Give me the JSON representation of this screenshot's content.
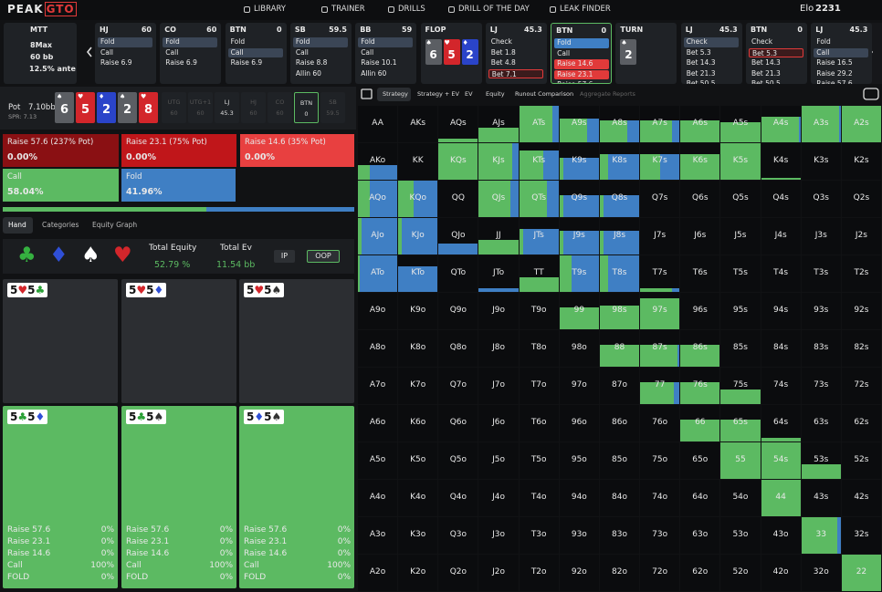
{
  "nav": {
    "logo_a": "PEAK",
    "logo_b": "GTO",
    "links": [
      "LIBRARY",
      "TRAINER",
      "DRILLS",
      "DRILL OF THE DAY",
      "LEAK FINDER"
    ],
    "elo_label": "Elo",
    "elo": "2231"
  },
  "game": {
    "format": "MTT",
    "players": "8Max",
    "stack": "60 bb",
    "ante": "12.5% ante"
  },
  "timeline": [
    {
      "pos": "HJ",
      "stack": "60",
      "actions": [
        {
          "label": "Fold",
          "style": "sel"
        },
        {
          "label": "Call"
        },
        {
          "label": "Raise 6.9"
        }
      ]
    },
    {
      "pos": "CO",
      "stack": "60",
      "actions": [
        {
          "label": "Fold",
          "style": "sel"
        },
        {
          "label": "Call"
        },
        {
          "label": "Raise 6.9"
        }
      ]
    },
    {
      "pos": "BTN",
      "stack": "0",
      "actions": [
        {
          "label": "Fold"
        },
        {
          "label": "Call",
          "style": "sel"
        },
        {
          "label": "Raise 6.9"
        }
      ]
    },
    {
      "pos": "SB",
      "stack": "59.5",
      "actions": [
        {
          "label": "Fold",
          "style": "sel"
        },
        {
          "label": "Call"
        },
        {
          "label": "Raise 8.8"
        },
        {
          "label": "Allin 60"
        }
      ]
    },
    {
      "pos": "BB",
      "stack": "59",
      "actions": [
        {
          "label": "Fold",
          "style": "sel"
        },
        {
          "label": "Call"
        },
        {
          "label": "Raise 10.1"
        },
        {
          "label": "Allin 60"
        }
      ]
    },
    {
      "street": "FLOP",
      "cards": [
        {
          "rank": "6",
          "suit": "♠",
          "color": "#5b5e63"
        },
        {
          "rank": "5",
          "suit": "♥",
          "color": "#d3262b"
        },
        {
          "rank": "2",
          "suit": "♦",
          "color": "#2a44c9"
        }
      ]
    },
    {
      "pos": "LJ",
      "stack": "45.3",
      "actions": [
        {
          "label": "Check"
        },
        {
          "label": "Bet 1.8"
        },
        {
          "label": "Bet 4.8"
        },
        {
          "label": "Bet 7.1",
          "style": "redline"
        }
      ]
    },
    {
      "pos": "BTN",
      "stack": "0",
      "active": true,
      "actions": [
        {
          "label": "Fold",
          "style": "blue"
        },
        {
          "label": "Call"
        },
        {
          "label": "Raise 14.6",
          "style": "red"
        },
        {
          "label": "Raise 23.1",
          "style": "red"
        },
        {
          "label": "Raise 57.6"
        }
      ]
    },
    {
      "street": "TURN",
      "cards": [
        {
          "rank": "2",
          "suit": "♠",
          "color": "#5b5e63"
        }
      ]
    },
    {
      "pos": "LJ",
      "stack": "45.3",
      "actions": [
        {
          "label": "Check",
          "style": "sel"
        },
        {
          "label": "Bet 5.3"
        },
        {
          "label": "Bet 14.3"
        },
        {
          "label": "Bet 21.3"
        },
        {
          "label": "Bet 50.5"
        }
      ]
    },
    {
      "pos": "BTN",
      "stack": "0",
      "actions": [
        {
          "label": "Check"
        },
        {
          "label": "Bet 5.3",
          "style": "redline"
        },
        {
          "label": "Bet 14.3"
        },
        {
          "label": "Bet 21.3"
        },
        {
          "label": "Bet 50.5"
        }
      ]
    },
    {
      "pos": "LJ",
      "stack": "45.3",
      "actions": [
        {
          "label": "Fold"
        },
        {
          "label": "Call",
          "style": "sel"
        },
        {
          "label": "Raise 16.5"
        },
        {
          "label": "Raise 29.2"
        },
        {
          "label": "Raise 57.6"
        }
      ]
    }
  ],
  "pot": {
    "label": "Pot",
    "value": "7.10bb",
    "spr": "SPR: 7.13"
  },
  "board": [
    {
      "rank": "6",
      "suit": "♠",
      "color": "#5b5e63"
    },
    {
      "rank": "5",
      "suit": "♥",
      "color": "#d3262b"
    },
    {
      "rank": "2",
      "suit": "♦",
      "color": "#2a44c9"
    },
    {
      "rank": "2",
      "suit": "♠",
      "color": "#5b5e63"
    },
    {
      "rank": "8",
      "suit": "♥",
      "color": "#d3262b"
    }
  ],
  "seats": [
    {
      "pos": "UTG",
      "stack": "60"
    },
    {
      "pos": "UTG+1",
      "stack": "60"
    },
    {
      "pos": "LJ",
      "stack": "45.3",
      "live": true
    },
    {
      "pos": "HJ",
      "stack": "60"
    },
    {
      "pos": "CO",
      "stack": "60"
    },
    {
      "pos": "BTN",
      "stack": "0",
      "live": true,
      "active": true
    },
    {
      "pos": "SB",
      "stack": "59.5"
    }
  ],
  "strategy": {
    "labels": [
      "Raise 57.6 (237% Pot)",
      "Raise 23.1 (75% Pot)",
      "Raise 14.6 (35% Pot)",
      "Call",
      "Fold"
    ],
    "values": [
      0,
      0,
      0,
      58.04,
      41.96
    ],
    "value_labels": [
      "0.00%",
      "0.00%",
      "0.00%",
      "58.04%",
      "41.96%"
    ],
    "colors": [
      "#8a1013",
      "#c0161a",
      "#e84040",
      "#5cba62",
      "#3f7fc4"
    ]
  },
  "tabs": [
    "Hand",
    "Categories",
    "Equity Graph"
  ],
  "suits": [
    {
      "symbol": "♣",
      "color": "#35b140"
    },
    {
      "symbol": "♦",
      "color": "#2f4fd6"
    },
    {
      "symbol": "♠",
      "color": "#ffffff"
    },
    {
      "symbol": "♥",
      "color": "#d3262b"
    }
  ],
  "equity": {
    "label": "Total Equity",
    "value": "52.79 %"
  },
  "ev": {
    "label": "Total Ev",
    "value": "11.54 bb"
  },
  "buttons": [
    "IP",
    "OOP"
  ],
  "combos": [
    {
      "cards": [
        {
          "rank": "5",
          "suit": "♥",
          "color": "#d3262b"
        },
        {
          "rank": "5",
          "suit": "♣",
          "color": "#2aa036"
        }
      ],
      "color": "#2c2e32"
    },
    {
      "cards": [
        {
          "rank": "5",
          "suit": "♥",
          "color": "#d3262b"
        },
        {
          "rank": "5",
          "suit": "♦",
          "color": "#2f4fd6"
        }
      ],
      "color": "#2c2e32"
    },
    {
      "cards": [
        {
          "rank": "5",
          "suit": "♥",
          "color": "#d3262b"
        },
        {
          "rank": "5",
          "suit": "♠",
          "color": "#333333"
        }
      ],
      "color": "#2c2e32"
    },
    {
      "cards": [
        {
          "rank": "5",
          "suit": "♣",
          "color": "#2aa036"
        },
        {
          "rank": "5",
          "suit": "♦",
          "color": "#2f4fd6"
        }
      ],
      "color": "#5cba62",
      "stats": [
        {
          "label": "Raise 57.6",
          "value": "0%"
        },
        {
          "label": "Raise 23.1",
          "value": "0%"
        },
        {
          "label": "Raise 14.6",
          "value": "0%"
        },
        {
          "label": "Call",
          "value": "100%"
        },
        {
          "label": "FOLD",
          "value": "0%"
        }
      ]
    },
    {
      "cards": [
        {
          "rank": "5",
          "suit": "♣",
          "color": "#2aa036"
        },
        {
          "rank": "5",
          "suit": "♠",
          "color": "#333333"
        }
      ],
      "color": "#5cba62",
      "stats": [
        {
          "label": "Raise 57.6",
          "value": "0%"
        },
        {
          "label": "Raise 23.1",
          "value": "0%"
        },
        {
          "label": "Raise 14.6",
          "value": "0%"
        },
        {
          "label": "Call",
          "value": "100%"
        },
        {
          "label": "FOLD",
          "value": "0%"
        }
      ]
    },
    {
      "cards": [
        {
          "rank": "5",
          "suit": "♦",
          "color": "#2f4fd6"
        },
        {
          "rank": "5",
          "suit": "♠",
          "color": "#333333"
        }
      ],
      "color": "#5cba62",
      "stats": [
        {
          "label": "Raise 57.6",
          "value": "0%"
        },
        {
          "label": "Raise 23.1",
          "value": "0%"
        },
        {
          "label": "Raise 14.6",
          "value": "0%"
        },
        {
          "label": "Call",
          "value": "100%"
        },
        {
          "label": "FOLD",
          "value": "0%"
        }
      ]
    }
  ],
  "views": [
    "Strategy",
    "Strategy + EV",
    "EV",
    "Equity",
    "Runout Comparison",
    "Aggregate Reports"
  ],
  "grid": {
    "call_color": "#5cba62",
    "fold_color": "#3f7fc4",
    "labels": [
      [
        "AA",
        "AKs",
        "AQs",
        "AJs",
        "ATs",
        "A9s",
        "A8s",
        "A7s",
        "A6s",
        "A5s",
        "A4s",
        "A3s",
        "A2s"
      ],
      [
        "AKo",
        "KK",
        "KQs",
        "KJs",
        "KTs",
        "K9s",
        "K8s",
        "K7s",
        "K6s",
        "K5s",
        "K4s",
        "K3s",
        "K2s"
      ],
      [
        "AQo",
        "KQo",
        "QQ",
        "QJs",
        "QTs",
        "Q9s",
        "Q8s",
        "Q7s",
        "Q6s",
        "Q5s",
        "Q4s",
        "Q3s",
        "Q2s"
      ],
      [
        "AJo",
        "KJo",
        "QJo",
        "JJ",
        "JTs",
        "J9s",
        "J8s",
        "J7s",
        "J6s",
        "J5s",
        "J4s",
        "J3s",
        "J2s"
      ],
      [
        "ATo",
        "KTo",
        "QTo",
        "JTo",
        "TT",
        "T9s",
        "T8s",
        "T7s",
        "T6s",
        "T5s",
        "T4s",
        "T3s",
        "T2s"
      ],
      [
        "A9o",
        "K9o",
        "Q9o",
        "J9o",
        "T9o",
        "99",
        "98s",
        "97s",
        "96s",
        "95s",
        "94s",
        "93s",
        "92s"
      ],
      [
        "A8o",
        "K8o",
        "Q8o",
        "J8o",
        "T8o",
        "98o",
        "88",
        "87s",
        "86s",
        "85s",
        "84s",
        "83s",
        "82s"
      ],
      [
        "A7o",
        "K7o",
        "Q7o",
        "J7o",
        "T7o",
        "97o",
        "87o",
        "77",
        "76s",
        "75s",
        "74s",
        "73s",
        "72s"
      ],
      [
        "A6o",
        "K6o",
        "Q6o",
        "J6o",
        "T6o",
        "96o",
        "86o",
        "76o",
        "66",
        "65s",
        "64s",
        "63s",
        "62s"
      ],
      [
        "A5o",
        "K5o",
        "Q5o",
        "J5o",
        "T5o",
        "95o",
        "85o",
        "75o",
        "65o",
        "55",
        "54s",
        "53s",
        "52s"
      ],
      [
        "A4o",
        "K4o",
        "Q4o",
        "J4o",
        "T4o",
        "94o",
        "84o",
        "74o",
        "64o",
        "54o",
        "44",
        "43s",
        "42s"
      ],
      [
        "A3o",
        "K3o",
        "Q3o",
        "J3o",
        "T3o",
        "93o",
        "83o",
        "73o",
        "63o",
        "53o",
        "43o",
        "33",
        "32s"
      ],
      [
        "A2o",
        "K2o",
        "Q2o",
        "J2o",
        "T2o",
        "92o",
        "82o",
        "72o",
        "62o",
        "52o",
        "42o",
        "32o",
        "22"
      ]
    ],
    "range": [
      [
        0,
        0,
        0.1,
        0.4,
        1,
        0.65,
        0.6,
        0.6,
        0.6,
        0.55,
        0.7,
        1,
        1
      ],
      [
        0.4,
        0,
        1,
        1,
        0.8,
        0.6,
        0.7,
        0.7,
        0.7,
        1,
        0.05,
        0,
        0
      ],
      [
        1,
        1,
        0,
        1,
        1,
        0.6,
        0.6,
        0,
        0,
        0,
        0,
        0,
        0
      ],
      [
        1,
        1,
        0.3,
        0.4,
        0.7,
        0.65,
        0.65,
        0,
        0,
        0,
        0,
        0,
        0
      ],
      [
        1,
        0.7,
        0,
        0.1,
        0.4,
        1,
        1,
        0.1,
        0,
        0,
        0,
        0,
        0
      ],
      [
        0,
        0,
        0,
        0,
        0,
        0.6,
        0.65,
        0.85,
        0,
        0,
        0,
        0,
        0
      ],
      [
        0,
        0,
        0,
        0,
        0,
        0,
        0.6,
        0.6,
        0.6,
        0,
        0,
        0,
        0
      ],
      [
        0,
        0,
        0,
        0,
        0,
        0,
        0,
        0.6,
        0.6,
        0.4,
        0,
        0,
        0
      ],
      [
        0,
        0,
        0,
        0,
        0,
        0,
        0,
        0,
        0.6,
        0.6,
        0.1,
        0,
        0
      ],
      [
        0,
        0,
        0,
        0,
        0,
        0,
        0,
        0,
        0,
        1,
        1,
        0.4,
        0
      ],
      [
        0,
        0,
        0,
        0,
        0,
        0,
        0,
        0,
        0,
        0,
        1,
        0,
        0
      ],
      [
        0,
        0,
        0,
        0,
        0,
        0,
        0,
        0,
        0,
        0,
        0,
        1,
        0
      ],
      [
        0,
        0,
        0,
        0,
        0,
        0,
        0,
        0,
        0,
        0,
        0,
        0,
        1
      ]
    ],
    "call": [
      [
        0,
        0,
        1,
        1,
        0.85,
        0.7,
        0.7,
        0.8,
        1,
        1,
        0.95,
        0.95,
        1
      ],
      [
        0.3,
        0,
        1,
        0.85,
        0.6,
        0.1,
        0.2,
        0.5,
        1,
        1,
        1,
        0,
        0
      ],
      [
        0.3,
        0.4,
        0,
        0.8,
        0.7,
        0.1,
        0.1,
        0,
        0,
        0,
        0,
        0,
        0
      ],
      [
        0.1,
        0.1,
        0,
        1,
        0.1,
        0.1,
        0.1,
        0,
        0,
        0,
        0,
        0,
        0
      ],
      [
        0.05,
        0,
        0,
        0,
        1,
        0.3,
        0.2,
        0.8,
        0,
        0,
        0,
        0,
        0
      ],
      [
        0,
        0,
        0,
        0,
        0,
        1,
        1,
        1,
        0,
        0,
        0,
        0,
        0
      ],
      [
        0,
        0,
        0,
        0,
        0,
        0,
        1,
        0.95,
        1,
        0,
        0,
        0,
        0
      ],
      [
        0,
        0,
        0,
        0,
        0,
        0,
        0,
        0.85,
        1,
        1,
        0,
        0,
        0
      ],
      [
        0,
        0,
        0,
        0,
        0,
        0,
        0,
        0,
        1,
        1,
        1,
        0,
        0
      ],
      [
        0,
        0,
        0,
        0,
        0,
        0,
        0,
        0,
        0,
        1,
        1,
        1,
        0
      ],
      [
        0,
        0,
        0,
        0,
        0,
        0,
        0,
        0,
        0,
        0,
        1,
        0,
        0
      ],
      [
        0,
        0,
        0,
        0,
        0,
        0,
        0,
        0,
        0,
        0,
        0,
        0.9,
        0
      ],
      [
        0,
        0,
        0,
        0,
        0,
        0,
        0,
        0,
        0,
        0,
        0,
        0,
        1
      ]
    ]
  }
}
